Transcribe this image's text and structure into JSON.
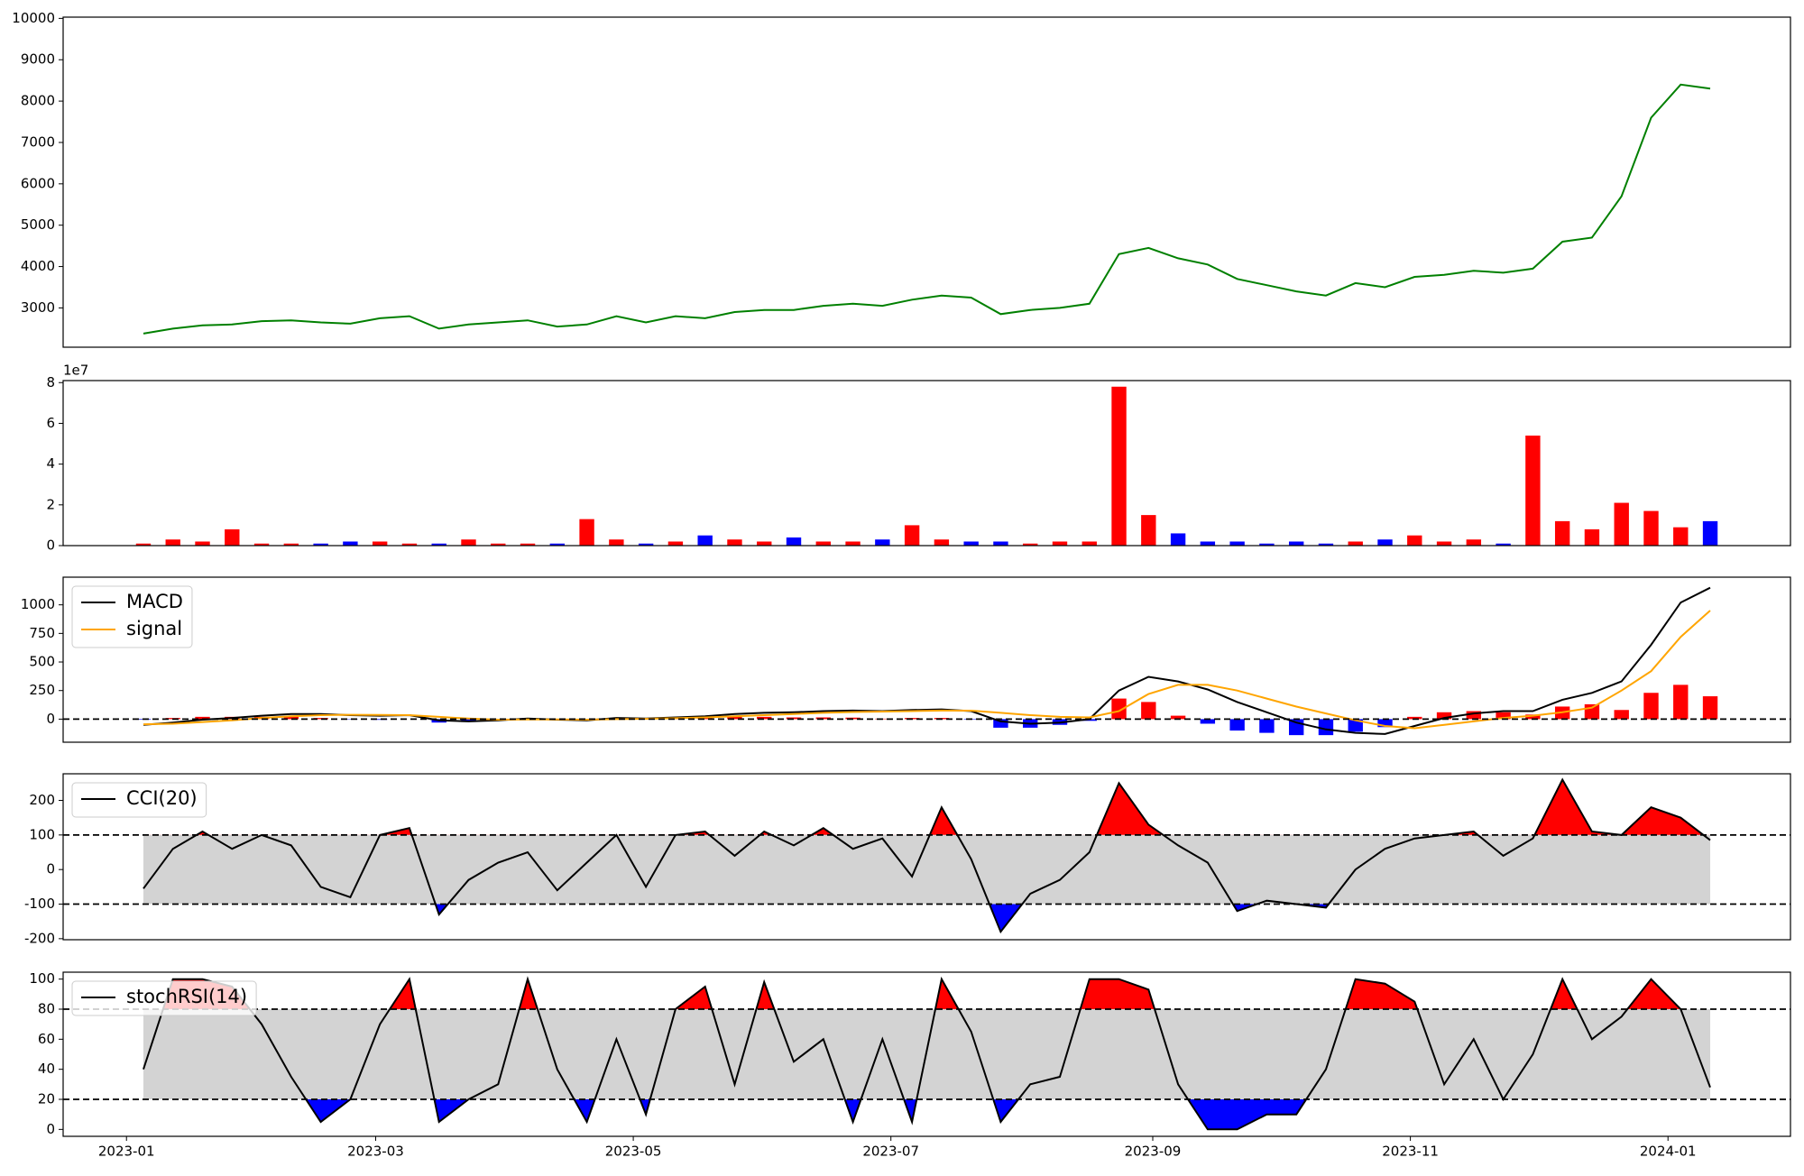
{
  "chart_data": [
    {
      "type": "line",
      "x": [
        "2023-01-05",
        "2023-01-12",
        "2023-01-19",
        "2023-01-26",
        "2023-02-02",
        "2023-02-09",
        "2023-02-16",
        "2023-02-23",
        "2023-03-02",
        "2023-03-09",
        "2023-03-16",
        "2023-03-23",
        "2023-03-30",
        "2023-04-06",
        "2023-04-13",
        "2023-04-20",
        "2023-04-27",
        "2023-05-04",
        "2023-05-11",
        "2023-05-18",
        "2023-05-25",
        "2023-06-01",
        "2023-06-08",
        "2023-06-15",
        "2023-06-22",
        "2023-06-29",
        "2023-07-06",
        "2023-07-13",
        "2023-07-20",
        "2023-07-27",
        "2023-08-03",
        "2023-08-10",
        "2023-08-17",
        "2023-08-24",
        "2023-08-31",
        "2023-09-07",
        "2023-09-14",
        "2023-09-21",
        "2023-09-28",
        "2023-10-05",
        "2023-10-12",
        "2023-10-19",
        "2023-10-26",
        "2023-11-02",
        "2023-11-09",
        "2023-11-16",
        "2023-11-23",
        "2023-11-30",
        "2023-12-07",
        "2023-12-14",
        "2023-12-21",
        "2023-12-28",
        "2024-01-04",
        "2024-01-11"
      ],
      "xlim": [
        "2022-12-17",
        "2024-01-30"
      ],
      "series": [
        {
          "color": "#008000",
          "values": [
            2380,
            2500,
            2580,
            2600,
            2680,
            2700,
            2650,
            2620,
            2750,
            2800,
            2500,
            2600,
            2650,
            2700,
            2550,
            2600,
            2800,
            2650,
            2800,
            2750,
            2900,
            2950,
            2950,
            3050,
            3100,
            3050,
            3200,
            3300,
            3250,
            2850,
            2950,
            3000,
            3100,
            4300,
            4450,
            4200,
            4050,
            3700,
            3550,
            3400,
            3300,
            3600,
            3500,
            3750,
            3800,
            3900,
            3850,
            3950,
            4600,
            4700,
            5700,
            7600,
            8400,
            8300
          ]
        }
      ],
      "ylim": [
        2050,
        10030
      ],
      "yticks": [
        3000,
        4000,
        5000,
        6000,
        7000,
        8000,
        9000,
        10000
      ]
    },
    {
      "type": "bar",
      "x": [
        "2023-01-05",
        "2023-01-12",
        "2023-01-19",
        "2023-01-26",
        "2023-02-02",
        "2023-02-09",
        "2023-02-16",
        "2023-02-23",
        "2023-03-02",
        "2023-03-09",
        "2023-03-16",
        "2023-03-23",
        "2023-03-30",
        "2023-04-06",
        "2023-04-13",
        "2023-04-20",
        "2023-04-27",
        "2023-05-04",
        "2023-05-11",
        "2023-05-18",
        "2023-05-25",
        "2023-06-01",
        "2023-06-08",
        "2023-06-15",
        "2023-06-22",
        "2023-06-29",
        "2023-07-06",
        "2023-07-13",
        "2023-07-20",
        "2023-07-27",
        "2023-08-03",
        "2023-08-10",
        "2023-08-17",
        "2023-08-24",
        "2023-08-31",
        "2023-09-07",
        "2023-09-14",
        "2023-09-21",
        "2023-09-28",
        "2023-10-05",
        "2023-10-12",
        "2023-10-19",
        "2023-10-26",
        "2023-11-02",
        "2023-11-09",
        "2023-11-16",
        "2023-11-23",
        "2023-11-30",
        "2023-12-07",
        "2023-12-14",
        "2023-12-21",
        "2023-12-28",
        "2024-01-04",
        "2024-01-11"
      ],
      "xlim": [
        "2022-12-17",
        "2024-01-30"
      ],
      "offset_label": "1e7",
      "series": [
        {
          "type": "bar",
          "values": [
            0.1,
            0.3,
            0.2,
            0.8,
            0.1,
            0.1,
            0.1,
            0.2,
            0.2,
            0.1,
            0.1,
            0.3,
            0.1,
            0.1,
            0.1,
            1.3,
            0.3,
            0.1,
            0.2,
            0.5,
            0.3,
            0.2,
            0.4,
            0.2,
            0.2,
            0.3,
            1.0,
            0.3,
            0.2,
            0.2,
            0.1,
            0.2,
            0.2,
            7.8,
            1.5,
            0.6,
            0.2,
            0.2,
            0.1,
            0.2,
            0.1,
            0.2,
            0.3,
            0.5,
            0.2,
            0.3,
            0.1,
            5.4,
            1.2,
            0.8,
            2.1,
            1.7,
            0.9,
            1.2
          ],
          "colors": [
            "red",
            "red",
            "red",
            "red",
            "red",
            "red",
            "blue",
            "blue",
            "red",
            "red",
            "blue",
            "red",
            "red",
            "red",
            "blue",
            "red",
            "red",
            "blue",
            "red",
            "blue",
            "red",
            "red",
            "blue",
            "red",
            "red",
            "blue",
            "red",
            "red",
            "blue",
            "blue",
            "red",
            "red",
            "red",
            "red",
            "red",
            "blue",
            "blue",
            "blue",
            "blue",
            "blue",
            "blue",
            "red",
            "blue",
            "red",
            "red",
            "red",
            "blue",
            "red",
            "red",
            "red",
            "red",
            "red",
            "red",
            "blue"
          ]
        }
      ],
      "ylim": [
        0,
        8.1
      ],
      "yticks": [
        0,
        2,
        4,
        6,
        8
      ]
    },
    {
      "type": "line",
      "x": [
        "2023-01-05",
        "2023-01-12",
        "2023-01-19",
        "2023-01-26",
        "2023-02-02",
        "2023-02-09",
        "2023-02-16",
        "2023-02-23",
        "2023-03-02",
        "2023-03-09",
        "2023-03-16",
        "2023-03-23",
        "2023-03-30",
        "2023-04-06",
        "2023-04-13",
        "2023-04-20",
        "2023-04-27",
        "2023-05-04",
        "2023-05-11",
        "2023-05-18",
        "2023-05-25",
        "2023-06-01",
        "2023-06-08",
        "2023-06-15",
        "2023-06-22",
        "2023-06-29",
        "2023-07-06",
        "2023-07-13",
        "2023-07-20",
        "2023-07-27",
        "2023-08-03",
        "2023-08-10",
        "2023-08-17",
        "2023-08-24",
        "2023-08-31",
        "2023-09-07",
        "2023-09-14",
        "2023-09-21",
        "2023-09-28",
        "2023-10-05",
        "2023-10-12",
        "2023-10-19",
        "2023-10-26",
        "2023-11-02",
        "2023-11-09",
        "2023-11-16",
        "2023-11-23",
        "2023-11-30",
        "2023-12-07",
        "2023-12-14",
        "2023-12-21",
        "2023-12-28",
        "2024-01-04",
        "2024-01-11"
      ],
      "xlim": [
        "2022-12-17",
        "2024-01-30"
      ],
      "series": [
        {
          "type": "bar",
          "pos_color": "red",
          "neg_color": "blue",
          "values": [
            -5,
            10,
            20,
            20,
            20,
            20,
            10,
            -3,
            -6,
            0,
            -30,
            -25,
            -5,
            8,
            -2,
            -5,
            10,
            2,
            7,
            10,
            20,
            20,
            15,
            15,
            13,
            4,
            10,
            10,
            -4,
            -75,
            -75,
            -50,
            -15,
            180,
            150,
            30,
            -40,
            -100,
            -120,
            -140,
            -140,
            -110,
            -70,
            20,
            60,
            70,
            60,
            40,
            110,
            130,
            80,
            230,
            300,
            200
          ]
        },
        {
          "name": "MACD",
          "color": "#000000",
          "values": [
            -50,
            -30,
            -5,
            10,
            30,
            45,
            45,
            35,
            30,
            35,
            -10,
            -20,
            -10,
            5,
            -5,
            -10,
            10,
            5,
            15,
            25,
            45,
            55,
            60,
            70,
            75,
            70,
            80,
            85,
            70,
            -20,
            -40,
            -30,
            0,
            250,
            370,
            330,
            260,
            150,
            60,
            -30,
            -90,
            -120,
            -130,
            -60,
            10,
            50,
            70,
            70,
            170,
            230,
            330,
            650,
            1020,
            1150
          ]
        },
        {
          "name": "signal",
          "color": "#ffa500",
          "values": [
            -45,
            -40,
            -25,
            -10,
            10,
            25,
            35,
            38,
            36,
            35,
            20,
            5,
            -5,
            -3,
            -3,
            -5,
            0,
            3,
            8,
            15,
            25,
            35,
            45,
            55,
            62,
            66,
            70,
            75,
            74,
            55,
            35,
            20,
            15,
            70,
            220,
            300,
            300,
            250,
            180,
            110,
            50,
            -10,
            -60,
            -80,
            -50,
            -20,
            10,
            30,
            60,
            100,
            250,
            420,
            720,
            950
          ]
        }
      ],
      "hlines": [
        0
      ],
      "ylim": [
        -202,
        1242
      ],
      "yticks": [
        0,
        250,
        500,
        750,
        1000
      ]
    },
    {
      "type": "line",
      "x": [
        "2023-01-05",
        "2023-01-12",
        "2023-01-19",
        "2023-01-26",
        "2023-02-02",
        "2023-02-09",
        "2023-02-16",
        "2023-02-23",
        "2023-03-02",
        "2023-03-09",
        "2023-03-16",
        "2023-03-23",
        "2023-03-30",
        "2023-04-06",
        "2023-04-13",
        "2023-04-20",
        "2023-04-27",
        "2023-05-04",
        "2023-05-11",
        "2023-05-18",
        "2023-05-25",
        "2023-06-01",
        "2023-06-08",
        "2023-06-15",
        "2023-06-22",
        "2023-06-29",
        "2023-07-06",
        "2023-07-13",
        "2023-07-20",
        "2023-07-27",
        "2023-08-03",
        "2023-08-10",
        "2023-08-17",
        "2023-08-24",
        "2023-08-31",
        "2023-09-07",
        "2023-09-14",
        "2023-09-21",
        "2023-09-28",
        "2023-10-05",
        "2023-10-12",
        "2023-10-19",
        "2023-10-26",
        "2023-11-02",
        "2023-11-09",
        "2023-11-16",
        "2023-11-23",
        "2023-11-30",
        "2023-12-07",
        "2023-12-14",
        "2023-12-21",
        "2023-12-28",
        "2024-01-04",
        "2024-01-11"
      ],
      "xlim": [
        "2022-12-17",
        "2024-01-30"
      ],
      "series": [
        {
          "name": "CCI(20)",
          "color": "#000000",
          "values": [
            -55,
            60,
            110,
            60,
            100,
            70,
            -50,
            -80,
            100,
            120,
            -130,
            -30,
            20,
            50,
            -60,
            20,
            100,
            -50,
            100,
            110,
            40,
            110,
            70,
            120,
            60,
            90,
            -20,
            180,
            30,
            -180,
            -70,
            -30,
            50,
            250,
            130,
            70,
            20,
            -120,
            -90,
            -100,
            -110,
            0,
            60,
            90,
            100,
            110,
            40,
            90,
            260,
            110,
            100,
            180,
            150,
            85
          ]
        }
      ],
      "hlines": [
        100,
        -100
      ],
      "band": [
        -100,
        100
      ],
      "band_color": "#d3d3d3",
      "over_color": "red",
      "under_color": "blue",
      "ylim": [
        -203,
        277
      ],
      "yticks": [
        -200,
        -100,
        0,
        100,
        200
      ]
    },
    {
      "type": "line",
      "x": [
        "2023-01-05",
        "2023-01-12",
        "2023-01-19",
        "2023-01-26",
        "2023-02-02",
        "2023-02-09",
        "2023-02-16",
        "2023-02-23",
        "2023-03-02",
        "2023-03-09",
        "2023-03-16",
        "2023-03-23",
        "2023-03-30",
        "2023-04-06",
        "2023-04-13",
        "2023-04-20",
        "2023-04-27",
        "2023-05-04",
        "2023-05-11",
        "2023-05-18",
        "2023-05-25",
        "2023-06-01",
        "2023-06-08",
        "2023-06-15",
        "2023-06-22",
        "2023-06-29",
        "2023-07-06",
        "2023-07-13",
        "2023-07-20",
        "2023-07-27",
        "2023-08-03",
        "2023-08-10",
        "2023-08-17",
        "2023-08-24",
        "2023-08-31",
        "2023-09-07",
        "2023-09-14",
        "2023-09-21",
        "2023-09-28",
        "2023-10-05",
        "2023-10-12",
        "2023-10-19",
        "2023-10-26",
        "2023-11-02",
        "2023-11-09",
        "2023-11-16",
        "2023-11-23",
        "2023-11-30",
        "2023-12-07",
        "2023-12-14",
        "2023-12-21",
        "2023-12-28",
        "2024-01-04",
        "2024-01-11"
      ],
      "xlim": [
        "2022-12-17",
        "2024-01-30"
      ],
      "series": [
        {
          "name": "stochRSI(14)",
          "color": "#000000",
          "values": [
            40,
            100,
            100,
            95,
            70,
            35,
            5,
            20,
            70,
            100,
            5,
            20,
            30,
            100,
            40,
            5,
            60,
            10,
            80,
            95,
            30,
            98,
            45,
            60,
            5,
            60,
            5,
            100,
            65,
            5,
            30,
            35,
            100,
            100,
            93,
            30,
            0,
            0,
            10,
            10,
            40,
            100,
            97,
            85,
            30,
            60,
            20,
            50,
            100,
            60,
            75,
            100,
            80,
            28
          ]
        }
      ],
      "hlines": [
        80,
        20
      ],
      "band": [
        20,
        80
      ],
      "band_color": "#d3d3d3",
      "over_color": "red",
      "under_color": "blue",
      "ylim": [
        -4.6,
        104.6
      ],
      "yticks": [
        0,
        20,
        40,
        60,
        80,
        100
      ],
      "xticks": [
        {
          "value": "2023-01-01",
          "label": "2023-01"
        },
        {
          "value": "2023-03-01",
          "label": "2023-03"
        },
        {
          "value": "2023-05-01",
          "label": "2023-05"
        },
        {
          "value": "2023-07-01",
          "label": "2023-07"
        },
        {
          "value": "2023-09-01",
          "label": "2023-09"
        },
        {
          "value": "2023-11-01",
          "label": "2023-11"
        },
        {
          "value": "2024-01-01",
          "label": "2024-01"
        }
      ]
    }
  ]
}
